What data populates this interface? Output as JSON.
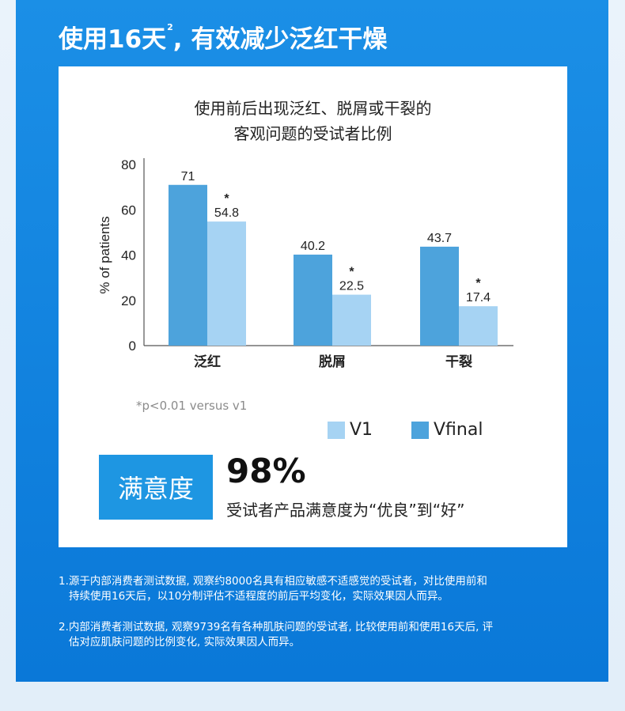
{
  "headline": {
    "text": "使用16天",
    "sup": "2",
    "rest": ", 有效减少泛红干燥"
  },
  "chart_title": [
    "使用前后出现泛红、脱屑或干裂的",
    "客观问题的受试者比例"
  ],
  "chart_data": {
    "type": "bar",
    "categories": [
      "泛红",
      "脱屑",
      "干裂"
    ],
    "series": [
      {
        "name": "Vfinal",
        "values": [
          71,
          40.2,
          43.7
        ],
        "labels": [
          "71",
          "40.2",
          "43.7"
        ],
        "color": "#4da3dc"
      },
      {
        "name": "V1",
        "values": [
          54.8,
          22.5,
          17.4
        ],
        "labels": [
          "54.8",
          "22.5",
          "17.4"
        ],
        "color": "#a6d3f3"
      }
    ],
    "ylabel": "% of patients",
    "ylim": [
      0,
      80
    ],
    "yticks": [
      0,
      20,
      40,
      60,
      80
    ],
    "significance_marker": "*",
    "grid": false
  },
  "footnote_p": "*p<0.01 versus v1",
  "legend": [
    {
      "label": "V1",
      "color": "#a6d3f3"
    },
    {
      "label": "Vfinal",
      "color": "#4da3dc"
    }
  ],
  "satisfaction": {
    "label": "满意度",
    "percent": "98%",
    "description": "受试者产品满意度为“优良”到“好”"
  },
  "notes": [
    {
      "line1": "1.源于内部消费者测试数据, 观察约8000名具有相应敏感不适感觉的受试者，对比使用前和",
      "line2": "持续使用16天后，以10分制评估不适程度的前后平均变化，实际效果因人而异。"
    },
    {
      "line1": "2.内部消费者测试数据, 观察9739名有各种肌肤问题的受试者, 比较使用前和使用16天后, 评",
      "line2": "估对应肌肤问题的比例变化, 实际效果因人而异。"
    }
  ]
}
